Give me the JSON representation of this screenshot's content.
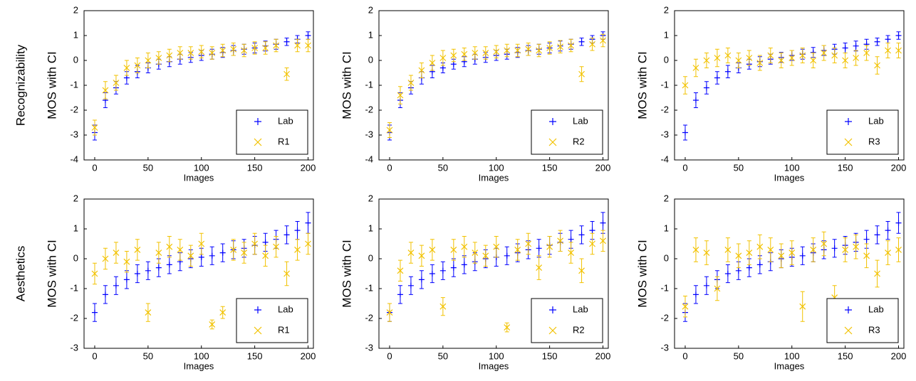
{
  "row_labels": [
    "Recognizability",
    "Aesthetics"
  ],
  "chart_data": [
    {
      "type": "errorbar",
      "xlabel": "Images",
      "ylabel": "MOS with CI",
      "xlim": [
        -10,
        205
      ],
      "ylim": [
        -4,
        2
      ],
      "xticks": [
        0,
        50,
        100,
        150,
        200
      ],
      "yticks": [
        -4,
        -3,
        -2,
        -1,
        0,
        1,
        2
      ],
      "legend": "lower right",
      "x": [
        0,
        10,
        20,
        30,
        40,
        50,
        60,
        70,
        80,
        90,
        100,
        110,
        120,
        130,
        140,
        150,
        160,
        170,
        180,
        190,
        200
      ],
      "series": [
        {
          "name": "Lab",
          "color": "#0000ff",
          "marker": "+",
          "values": [
            -2.9,
            -1.6,
            -1.1,
            -0.7,
            -0.45,
            -0.3,
            -0.15,
            -0.05,
            0.05,
            0.12,
            0.2,
            0.25,
            0.32,
            0.4,
            0.45,
            0.5,
            0.58,
            0.65,
            0.75,
            0.85,
            1.0
          ],
          "errors": [
            0.3,
            0.3,
            0.25,
            0.25,
            0.25,
            0.2,
            0.2,
            0.2,
            0.2,
            0.2,
            0.2,
            0.2,
            0.2,
            0.2,
            0.2,
            0.2,
            0.2,
            0.2,
            0.15,
            0.15,
            0.15
          ]
        },
        {
          "name": "R1",
          "color": "#f2c200",
          "marker": "x",
          "values": [
            -2.7,
            -1.2,
            -0.9,
            -0.3,
            -0.2,
            0.0,
            0.1,
            0.2,
            0.3,
            0.3,
            0.35,
            0.3,
            0.4,
            0.45,
            0.4,
            0.5,
            0.5,
            0.6,
            -0.55,
            0.6,
            0.6
          ],
          "errors": [
            0.3,
            0.35,
            0.3,
            0.3,
            0.3,
            0.3,
            0.25,
            0.25,
            0.25,
            0.25,
            0.25,
            0.25,
            0.25,
            0.25,
            0.25,
            0.25,
            0.25,
            0.25,
            0.25,
            0.25,
            0.25
          ]
        }
      ]
    },
    {
      "type": "errorbar",
      "xlabel": "Images",
      "ylabel": "MOS with CI",
      "xlim": [
        -10,
        205
      ],
      "ylim": [
        -4,
        2
      ],
      "xticks": [
        0,
        50,
        100,
        150,
        200
      ],
      "yticks": [
        -4,
        -3,
        -2,
        -1,
        0,
        1,
        2
      ],
      "legend": "lower right",
      "x": [
        0,
        10,
        20,
        30,
        40,
        50,
        60,
        70,
        80,
        90,
        100,
        110,
        120,
        130,
        140,
        150,
        160,
        170,
        180,
        190,
        200
      ],
      "series": [
        {
          "name": "Lab",
          "color": "#0000ff",
          "marker": "+",
          "values": [
            -2.9,
            -1.6,
            -1.1,
            -0.7,
            -0.45,
            -0.3,
            -0.15,
            -0.05,
            0.05,
            0.12,
            0.2,
            0.25,
            0.32,
            0.4,
            0.45,
            0.5,
            0.58,
            0.65,
            0.75,
            0.85,
            1.0
          ],
          "errors": [
            0.3,
            0.3,
            0.25,
            0.25,
            0.25,
            0.2,
            0.2,
            0.2,
            0.2,
            0.2,
            0.2,
            0.2,
            0.2,
            0.2,
            0.2,
            0.2,
            0.2,
            0.2,
            0.15,
            0.15,
            0.15
          ]
        },
        {
          "name": "R2",
          "color": "#f2c200",
          "marker": "x",
          "values": [
            -2.8,
            -1.4,
            -0.9,
            -0.4,
            -0.1,
            0.1,
            0.2,
            0.25,
            0.3,
            0.3,
            0.35,
            0.4,
            0.4,
            0.45,
            0.4,
            0.5,
            0.55,
            0.6,
            -0.55,
            0.65,
            0.8
          ],
          "errors": [
            0.3,
            0.35,
            0.3,
            0.3,
            0.3,
            0.3,
            0.25,
            0.25,
            0.25,
            0.25,
            0.25,
            0.25,
            0.25,
            0.25,
            0.25,
            0.25,
            0.25,
            0.25,
            0.3,
            0.25,
            0.25
          ]
        }
      ]
    },
    {
      "type": "errorbar",
      "xlabel": "Images",
      "ylabel": "MOS with CI",
      "xlim": [
        -10,
        205
      ],
      "ylim": [
        -4,
        2
      ],
      "xticks": [
        0,
        50,
        100,
        150,
        200
      ],
      "yticks": [
        -4,
        -3,
        -2,
        -1,
        0,
        1,
        2
      ],
      "legend": "lower right",
      "x": [
        0,
        10,
        20,
        30,
        40,
        50,
        60,
        70,
        80,
        90,
        100,
        110,
        120,
        130,
        140,
        150,
        160,
        170,
        180,
        190,
        200
      ],
      "series": [
        {
          "name": "Lab",
          "color": "#0000ff",
          "marker": "+",
          "values": [
            -2.9,
            -1.6,
            -1.1,
            -0.7,
            -0.45,
            -0.3,
            -0.15,
            -0.05,
            0.05,
            0.12,
            0.2,
            0.25,
            0.32,
            0.4,
            0.45,
            0.5,
            0.58,
            0.65,
            0.75,
            0.85,
            1.0
          ],
          "errors": [
            0.3,
            0.3,
            0.25,
            0.25,
            0.25,
            0.2,
            0.2,
            0.2,
            0.2,
            0.2,
            0.2,
            0.2,
            0.2,
            0.2,
            0.2,
            0.2,
            0.2,
            0.2,
            0.15,
            0.15,
            0.15
          ]
        },
        {
          "name": "R3",
          "color": "#f2c200",
          "marker": "x",
          "values": [
            -1.0,
            -0.3,
            0.0,
            0.1,
            0.2,
            0.0,
            0.1,
            -0.1,
            0.2,
            0.0,
            0.1,
            0.2,
            0.0,
            0.3,
            0.2,
            0.0,
            0.1,
            0.3,
            -0.2,
            0.4,
            0.4
          ],
          "errors": [
            0.35,
            0.35,
            0.3,
            0.35,
            0.3,
            0.3,
            0.3,
            0.3,
            0.3,
            0.3,
            0.3,
            0.3,
            0.3,
            0.3,
            0.3,
            0.3,
            0.3,
            0.3,
            0.35,
            0.3,
            0.3
          ]
        }
      ]
    },
    {
      "type": "errorbar",
      "xlabel": "Images",
      "ylabel": "MOS with CI",
      "xlim": [
        -10,
        205
      ],
      "ylim": [
        -3,
        2
      ],
      "xticks": [
        0,
        50,
        100,
        150,
        200
      ],
      "yticks": [
        -3,
        -2,
        -1,
        0,
        1,
        2
      ],
      "legend": "lower right",
      "x": [
        0,
        10,
        20,
        30,
        40,
        50,
        60,
        70,
        80,
        90,
        100,
        110,
        120,
        130,
        140,
        150,
        160,
        170,
        180,
        190,
        200
      ],
      "series": [
        {
          "name": "Lab",
          "color": "#0000ff",
          "marker": "+",
          "values": [
            -1.8,
            -1.2,
            -0.9,
            -0.7,
            -0.5,
            -0.4,
            -0.3,
            -0.2,
            -0.1,
            0.0,
            0.05,
            0.1,
            0.2,
            0.3,
            0.35,
            0.45,
            0.55,
            0.65,
            0.8,
            0.95,
            1.2
          ],
          "errors": [
            0.3,
            0.3,
            0.3,
            0.3,
            0.3,
            0.3,
            0.3,
            0.3,
            0.3,
            0.3,
            0.3,
            0.3,
            0.3,
            0.3,
            0.3,
            0.3,
            0.3,
            0.3,
            0.3,
            0.3,
            0.35
          ]
        },
        {
          "name": "R1",
          "color": "#f2c200",
          "marker": "x",
          "values": [
            -0.5,
            0.0,
            0.2,
            -0.1,
            0.3,
            -1.8,
            0.2,
            0.4,
            0.3,
            0.1,
            0.5,
            -2.2,
            -1.8,
            0.3,
            0.2,
            0.5,
            0.1,
            0.4,
            -0.5,
            0.3,
            0.5
          ],
          "errors": [
            0.35,
            0.35,
            0.35,
            0.35,
            0.35,
            0.3,
            0.35,
            0.35,
            0.35,
            0.35,
            0.35,
            0.15,
            0.2,
            0.35,
            0.35,
            0.35,
            0.35,
            0.35,
            0.4,
            0.35,
            0.35
          ]
        }
      ]
    },
    {
      "type": "errorbar",
      "xlabel": "Images",
      "ylabel": "MOS with CI",
      "xlim": [
        -10,
        205
      ],
      "ylim": [
        -3,
        2
      ],
      "xticks": [
        0,
        50,
        100,
        150,
        200
      ],
      "yticks": [
        -3,
        -2,
        -1,
        0,
        1,
        2
      ],
      "legend": "lower right",
      "x": [
        0,
        10,
        20,
        30,
        40,
        50,
        60,
        70,
        80,
        90,
        100,
        110,
        120,
        130,
        140,
        150,
        160,
        170,
        180,
        190,
        200
      ],
      "series": [
        {
          "name": "Lab",
          "color": "#0000ff",
          "marker": "+",
          "values": [
            -1.8,
            -1.2,
            -0.9,
            -0.7,
            -0.5,
            -0.4,
            -0.3,
            -0.2,
            -0.1,
            0.0,
            0.05,
            0.1,
            0.2,
            0.3,
            0.35,
            0.45,
            0.55,
            0.65,
            0.8,
            0.95,
            1.2
          ],
          "errors": [
            0.3,
            0.3,
            0.3,
            0.3,
            0.3,
            0.3,
            0.3,
            0.3,
            0.3,
            0.3,
            0.3,
            0.3,
            0.3,
            0.3,
            0.3,
            0.3,
            0.3,
            0.3,
            0.3,
            0.3,
            0.35
          ]
        },
        {
          "name": "R2",
          "color": "#f2c200",
          "marker": "x",
          "values": [
            -1.8,
            -0.4,
            0.2,
            0.1,
            0.3,
            -1.6,
            0.3,
            0.4,
            0.2,
            0.1,
            0.4,
            -2.3,
            0.3,
            0.5,
            -0.3,
            0.4,
            0.6,
            0.2,
            -0.4,
            0.5,
            0.6
          ],
          "errors": [
            0.3,
            0.35,
            0.35,
            0.35,
            0.35,
            0.3,
            0.35,
            0.35,
            0.35,
            0.35,
            0.35,
            0.15,
            0.35,
            0.35,
            0.4,
            0.35,
            0.35,
            0.35,
            0.4,
            0.35,
            0.35
          ]
        }
      ]
    },
    {
      "type": "errorbar",
      "xlabel": "Images",
      "ylabel": "MOS with CI",
      "xlim": [
        -10,
        205
      ],
      "ylim": [
        -3,
        2
      ],
      "xticks": [
        0,
        50,
        100,
        150,
        200
      ],
      "yticks": [
        -3,
        -2,
        -1,
        0,
        1,
        2
      ],
      "legend": "lower right",
      "x": [
        0,
        10,
        20,
        30,
        40,
        50,
        60,
        70,
        80,
        90,
        100,
        110,
        120,
        130,
        140,
        150,
        160,
        170,
        180,
        190,
        200
      ],
      "series": [
        {
          "name": "Lab",
          "color": "#0000ff",
          "marker": "+",
          "values": [
            -1.8,
            -1.2,
            -0.9,
            -0.7,
            -0.5,
            -0.4,
            -0.3,
            -0.2,
            -0.1,
            0.0,
            0.05,
            0.1,
            0.2,
            0.3,
            0.35,
            0.45,
            0.55,
            0.65,
            0.8,
            0.95,
            1.2
          ],
          "errors": [
            0.3,
            0.3,
            0.3,
            0.3,
            0.3,
            0.3,
            0.3,
            0.3,
            0.3,
            0.3,
            0.3,
            0.3,
            0.3,
            0.3,
            0.3,
            0.3,
            0.3,
            0.3,
            0.3,
            0.3,
            0.35
          ]
        },
        {
          "name": "R3",
          "color": "#f2c200",
          "marker": "x",
          "values": [
            -1.6,
            0.3,
            0.2,
            -1.0,
            0.3,
            0.1,
            0.2,
            0.4,
            0.3,
            0.1,
            0.2,
            -1.6,
            0.3,
            0.5,
            -1.3,
            0.3,
            0.4,
            0.1,
            -0.5,
            0.2,
            0.3
          ],
          "errors": [
            0.35,
            0.4,
            0.4,
            0.4,
            0.4,
            0.4,
            0.4,
            0.4,
            0.4,
            0.4,
            0.4,
            0.5,
            0.4,
            0.4,
            0.4,
            0.4,
            0.4,
            0.4,
            0.45,
            0.4,
            0.4
          ]
        }
      ]
    }
  ]
}
